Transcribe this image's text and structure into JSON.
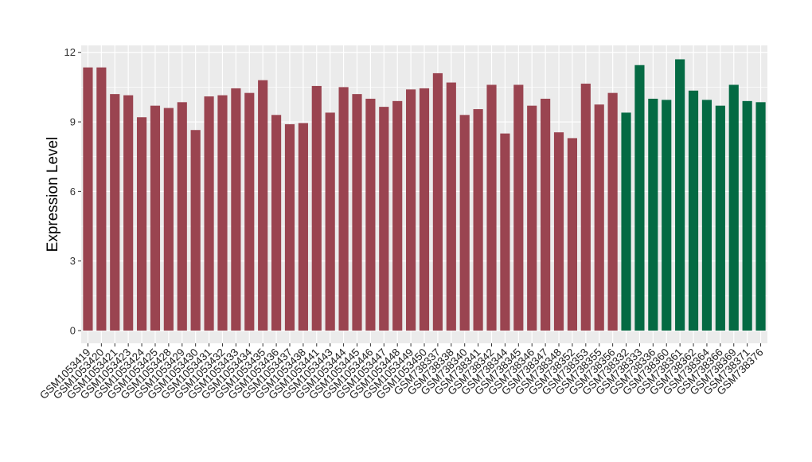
{
  "chart_data": {
    "type": "bar",
    "ylabel": "Expression Level",
    "ylim": [
      -0.55,
      12.3
    ],
    "yticks": [
      0,
      3,
      6,
      9,
      12
    ],
    "grid": true,
    "colors": {
      "group1": "#9a4450",
      "group2": "#046a43",
      "panel": "#ebebeb",
      "gridline": "#ffffff"
    },
    "categories": [
      "GSM1053419",
      "GSM1053420",
      "GSM1053421",
      "GSM1053423",
      "GSM1053424",
      "GSM1053425",
      "GSM1053428",
      "GSM1053429",
      "GSM1053430",
      "GSM1053431",
      "GSM1053432",
      "GSM1053433",
      "GSM1053434",
      "GSM1053435",
      "GSM1053436",
      "GSM1053437",
      "GSM1053438",
      "GSM1053441",
      "GSM1053443",
      "GSM1053444",
      "GSM1053445",
      "GSM1053446",
      "GSM1053447",
      "GSM1053448",
      "GSM1053449",
      "GSM1053450",
      "GSM738337",
      "GSM738338",
      "GSM738340",
      "GSM738341",
      "GSM738342",
      "GSM738344",
      "GSM738345",
      "GSM738346",
      "GSM738347",
      "GSM738348",
      "GSM738352",
      "GSM738353",
      "GSM738355",
      "GSM738356",
      "GSM738332",
      "GSM738333",
      "GSM738336",
      "GSM738360",
      "GSM738361",
      "GSM738362",
      "GSM738364",
      "GSM738366",
      "GSM738369",
      "GSM738371",
      "GSM738376"
    ],
    "values": [
      11.35,
      11.35,
      10.2,
      10.15,
      9.2,
      9.7,
      9.6,
      9.85,
      8.65,
      10.1,
      10.15,
      10.45,
      10.25,
      10.8,
      9.3,
      8.9,
      8.95,
      10.55,
      9.4,
      10.5,
      10.2,
      10.0,
      9.65,
      9.9,
      10.4,
      10.45,
      11.1,
      10.7,
      9.3,
      9.55,
      10.6,
      8.5,
      10.6,
      9.7,
      10.0,
      8.55,
      8.3,
      10.65,
      9.75,
      10.25,
      9.4,
      11.45,
      10.0,
      9.95,
      11.7,
      10.35,
      9.95,
      9.7,
      10.6,
      9.9,
      9.85
    ],
    "groups": [
      1,
      1,
      1,
      1,
      1,
      1,
      1,
      1,
      1,
      1,
      1,
      1,
      1,
      1,
      1,
      1,
      1,
      1,
      1,
      1,
      1,
      1,
      1,
      1,
      1,
      1,
      1,
      1,
      1,
      1,
      1,
      1,
      1,
      1,
      1,
      1,
      1,
      1,
      1,
      1,
      2,
      2,
      2,
      2,
      2,
      2,
      2,
      2,
      2,
      2,
      2
    ]
  }
}
